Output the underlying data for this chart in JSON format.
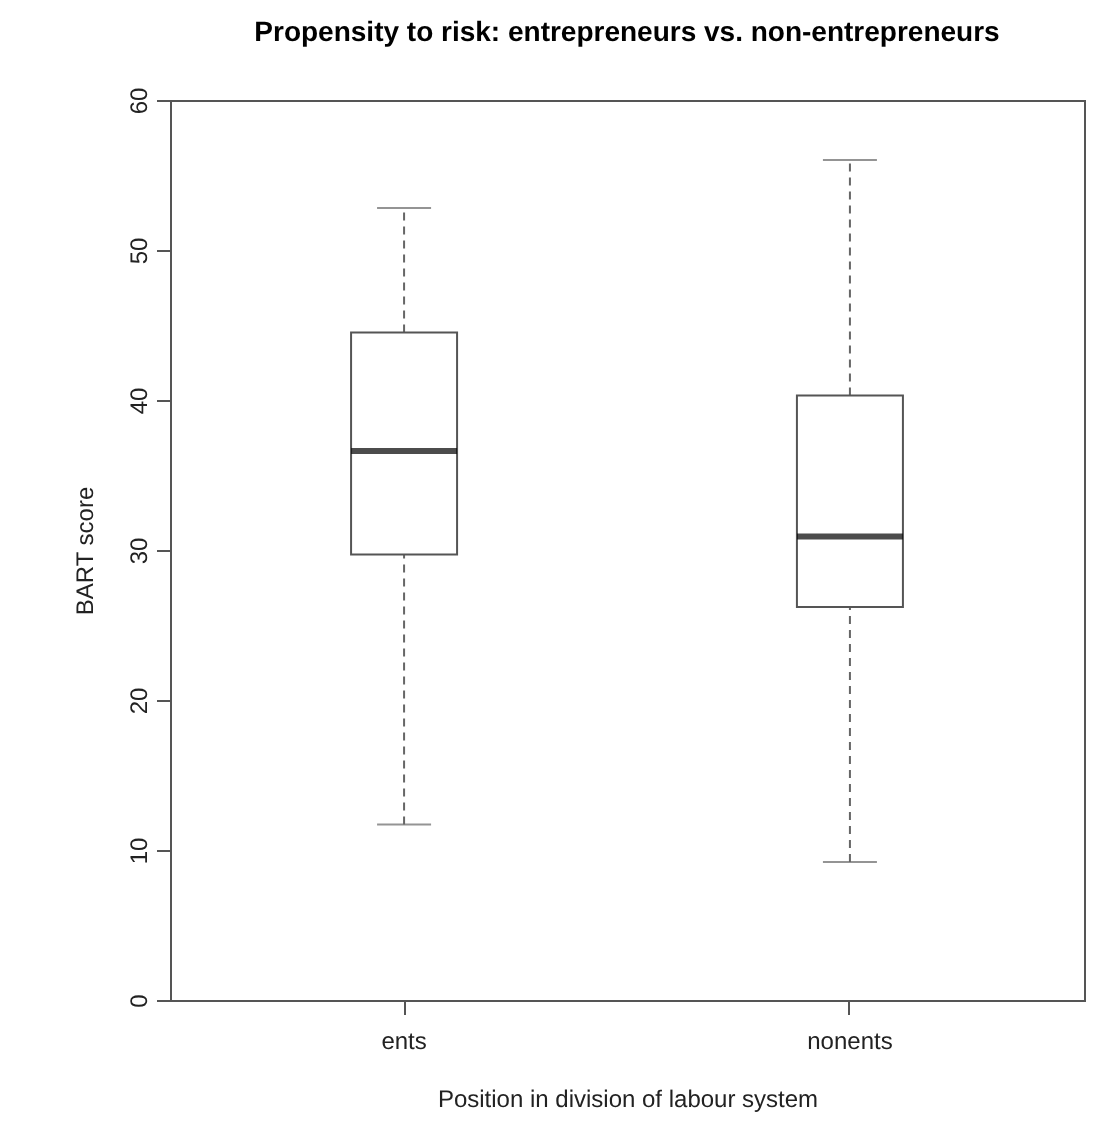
{
  "chart_data": {
    "type": "box",
    "title": "Propensity to risk: entrepreneurs vs. non-entrepreneurs",
    "xlabel": "Position in division of labour system",
    "ylabel": "BART score",
    "categories": [
      "ents",
      "nonents"
    ],
    "boxes": [
      {
        "low": 11.7,
        "q1": 29.7,
        "median": 36.6,
        "q3": 44.5,
        "high": 52.8
      },
      {
        "low": 9.2,
        "q1": 26.2,
        "median": 30.9,
        "q3": 40.3,
        "high": 56.0
      }
    ],
    "ylim": [
      0,
      60
    ],
    "yticks": [
      0,
      10,
      20,
      30,
      40,
      50,
      60
    ]
  }
}
